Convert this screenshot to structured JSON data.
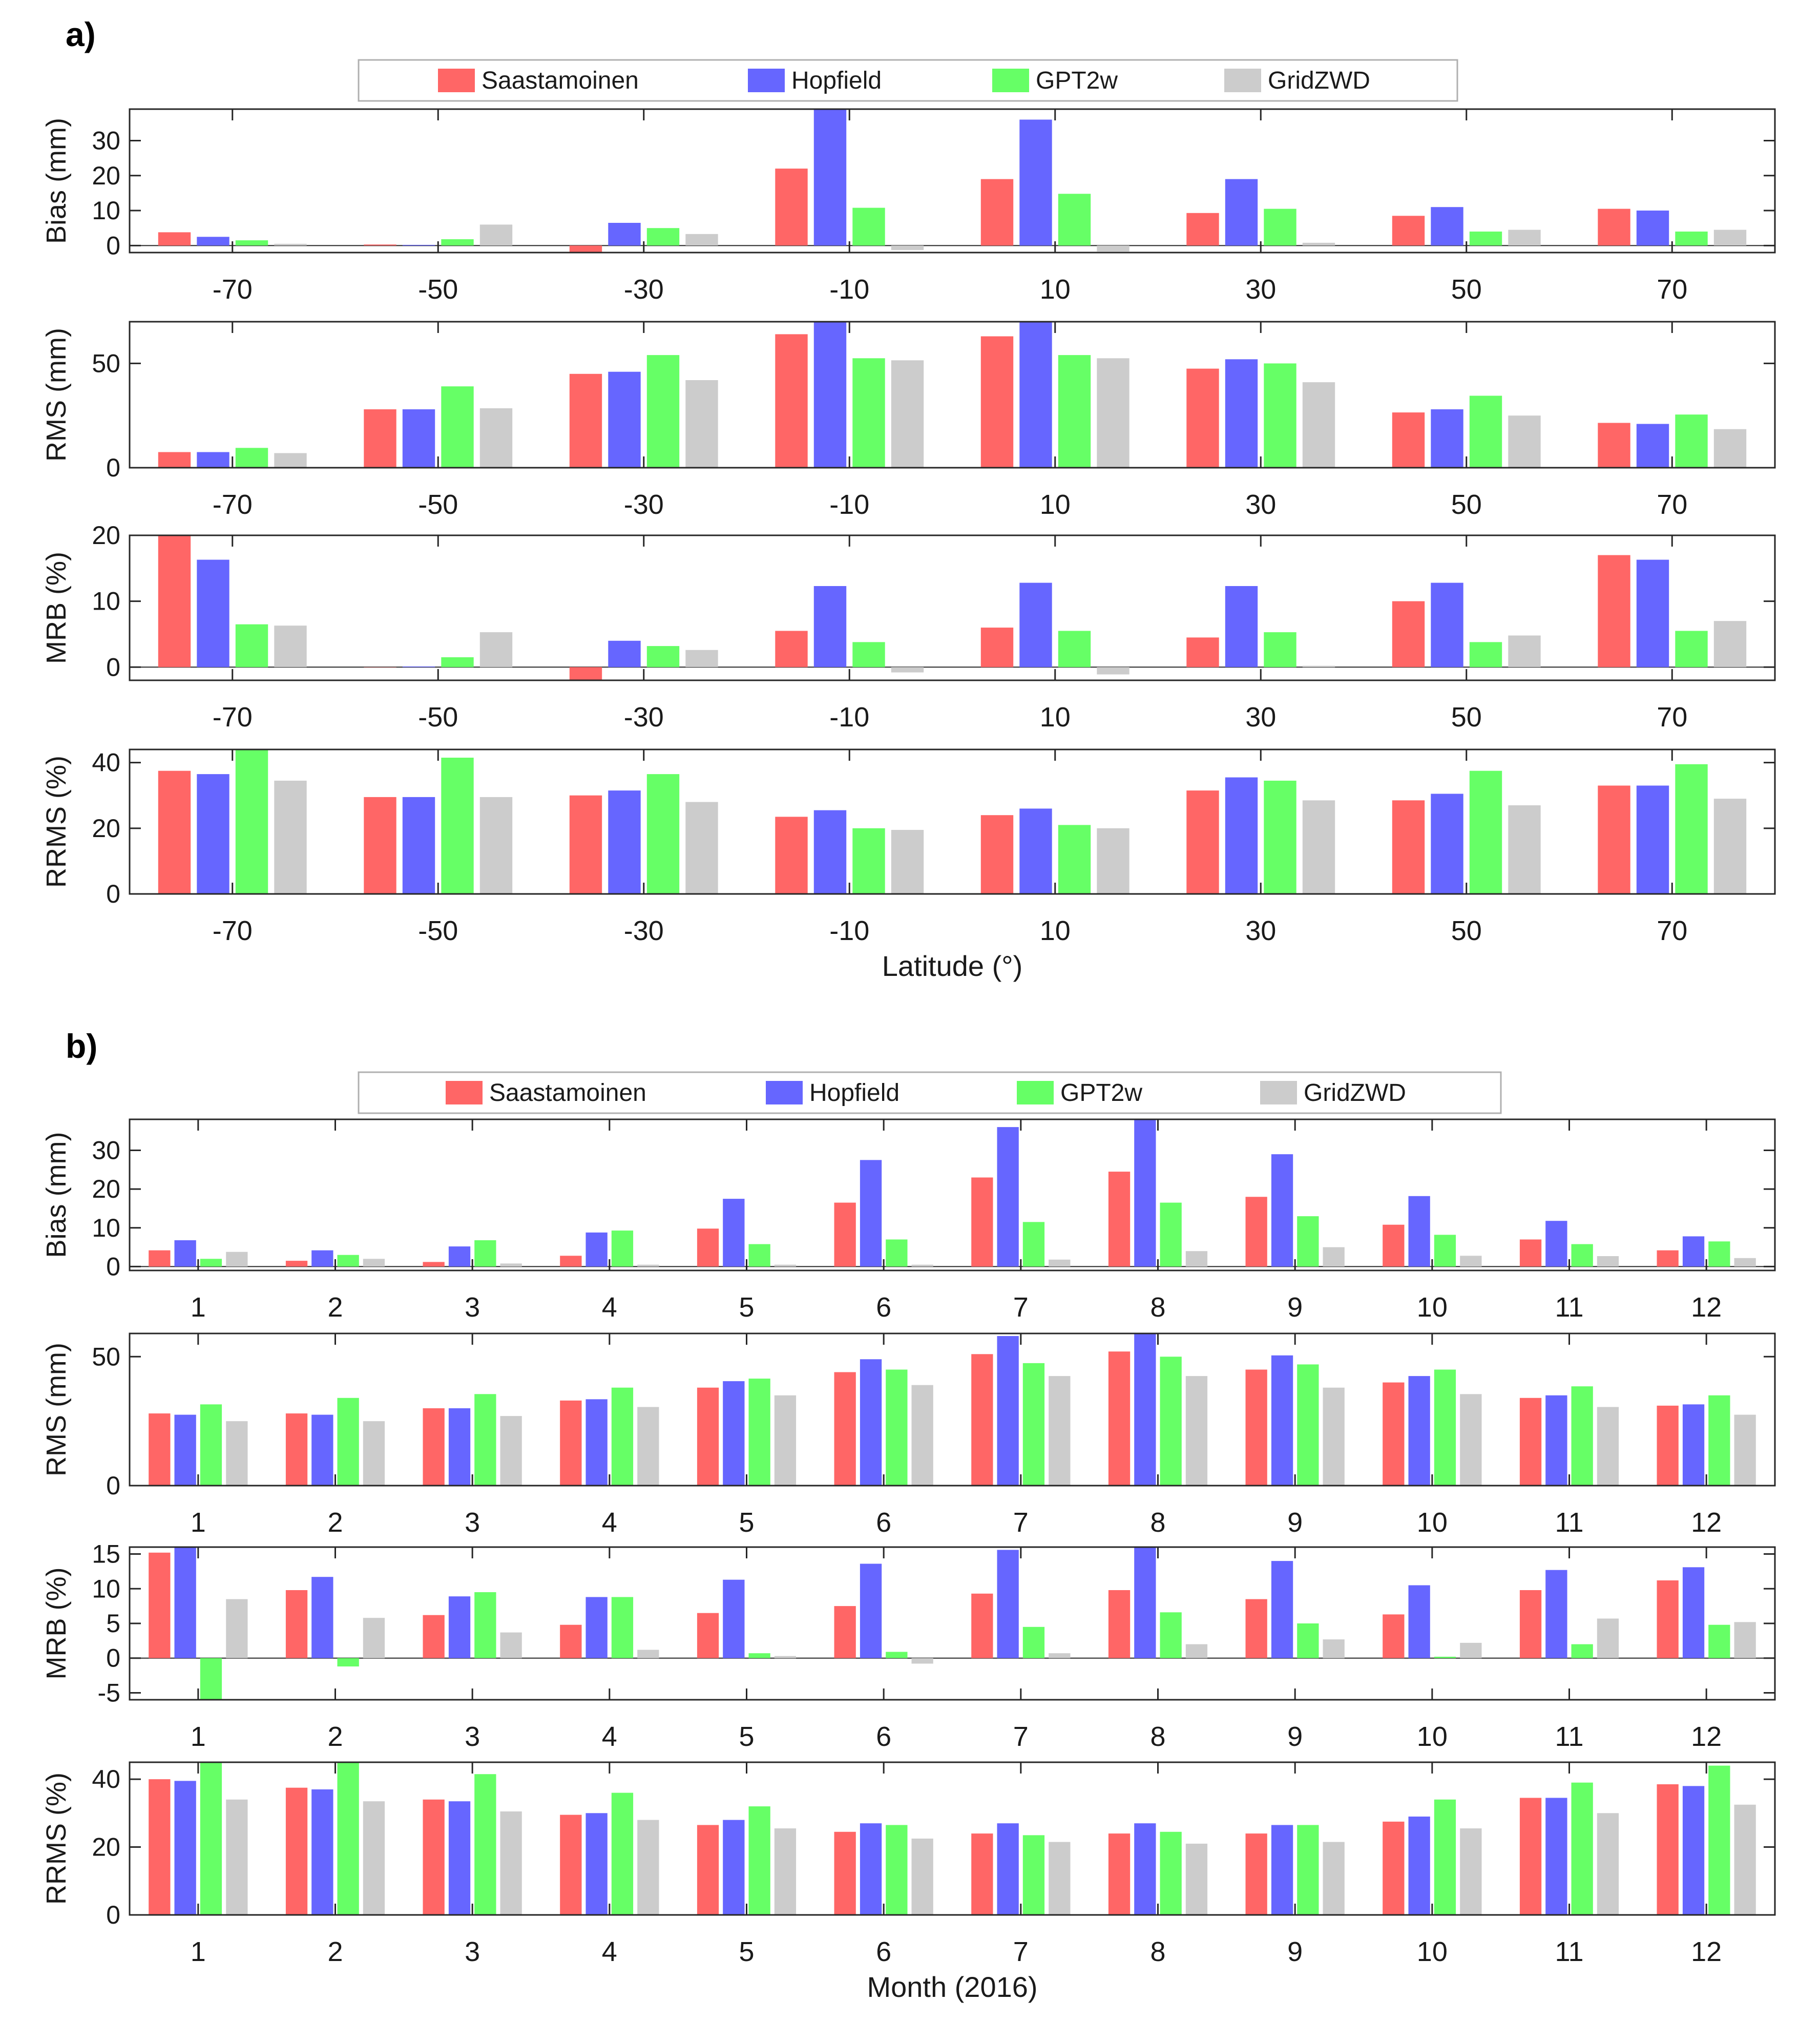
{
  "colors": {
    "Saastamoinen": "#ff6666",
    "Hopfield": "#6666ff",
    "GPT2w": "#66ff66",
    "GridZWD": "#cccccc"
  },
  "chart_data": [
    {
      "panel_label": "a)",
      "type": "bar",
      "legend": [
        "Saastamoinen",
        "Hopfield",
        "GPT2w",
        "GridZWD"
      ],
      "xlabel": "Latitude (°)",
      "categories": [
        "-70",
        "-50",
        "-30",
        "-10",
        "10",
        "30",
        "50",
        "70"
      ],
      "subplots": [
        {
          "ylabel": "Bias (mm)",
          "ylim": [
            -2,
            39
          ],
          "yticks": [
            0,
            10,
            20,
            30
          ],
          "series": [
            {
              "name": "Saastamoinen",
              "values": [
                3.8,
                0.3,
                -2,
                22,
                19,
                9.3,
                8.5,
                10.5
              ]
            },
            {
              "name": "Hopfield",
              "values": [
                2.5,
                0.2,
                6.5,
                39,
                36,
                19,
                11,
                10
              ]
            },
            {
              "name": "GPT2w",
              "values": [
                1.5,
                1.8,
                5,
                10.8,
                14.8,
                10.5,
                4,
                4
              ]
            },
            {
              "name": "GridZWD",
              "values": [
                0.5,
                6,
                3.3,
                -1.3,
                -1.7,
                0.8,
                4.5,
                4.5
              ]
            }
          ]
        },
        {
          "ylabel": "RMS (mm)",
          "ylim": [
            0,
            70
          ],
          "yticks": [
            0,
            50
          ],
          "series": [
            {
              "name": "Saastamoinen",
              "values": [
                7.5,
                28,
                45,
                64,
                63,
                47.5,
                26.5,
                21.5
              ]
            },
            {
              "name": "Hopfield",
              "values": [
                7.5,
                28,
                46,
                70,
                70,
                52,
                28,
                21
              ]
            },
            {
              "name": "GPT2w",
              "values": [
                9.5,
                39,
                54,
                52.5,
                54,
                50,
                34.5,
                25.5
              ]
            },
            {
              "name": "GridZWD",
              "values": [
                7,
                28.5,
                42,
                51.5,
                52.5,
                41,
                25,
                18.5
              ]
            }
          ]
        },
        {
          "ylabel": "MRB (%)",
          "ylim": [
            -2,
            20
          ],
          "yticks": [
            0,
            10,
            20
          ],
          "series": [
            {
              "name": "Saastamoinen",
              "values": [
                20,
                0,
                -2,
                5.5,
                6,
                4.5,
                10,
                17
              ]
            },
            {
              "name": "Hopfield",
              "values": [
                16.3,
                0.1,
                4,
                12.3,
                12.8,
                12.3,
                12.8,
                16.3
              ]
            },
            {
              "name": "GPT2w",
              "values": [
                6.5,
                1.5,
                3.2,
                3.8,
                5.5,
                5.3,
                3.8,
                5.5
              ]
            },
            {
              "name": "GridZWD",
              "values": [
                6.3,
                5.3,
                2.6,
                -0.8,
                -1.1,
                0.2,
                4.8,
                7
              ]
            }
          ]
        },
        {
          "ylabel": "RRMS (%)",
          "ylim": [
            0,
            44
          ],
          "yticks": [
            0,
            20,
            40
          ],
          "series": [
            {
              "name": "Saastamoinen",
              "values": [
                37.5,
                29.5,
                30,
                23.5,
                24,
                31.5,
                28.5,
                33
              ]
            },
            {
              "name": "Hopfield",
              "values": [
                36.5,
                29.5,
                31.5,
                25.5,
                26,
                35.5,
                30.5,
                33
              ]
            },
            {
              "name": "GPT2w",
              "values": [
                44,
                41.5,
                36.5,
                20,
                21,
                34.5,
                37.5,
                39.5
              ]
            },
            {
              "name": "GridZWD",
              "values": [
                34.5,
                29.5,
                28,
                19.5,
                20,
                28.5,
                27,
                29
              ]
            }
          ]
        }
      ]
    },
    {
      "panel_label": "b)",
      "type": "bar",
      "legend": [
        "Saastamoinen",
        "Hopfield",
        "GPT2w",
        "GridZWD"
      ],
      "xlabel": "Month (2016)",
      "categories": [
        "1",
        "2",
        "3",
        "4",
        "5",
        "6",
        "7",
        "8",
        "9",
        "10",
        "11",
        "12"
      ],
      "subplots": [
        {
          "ylabel": "Bias (mm)",
          "ylim": [
            -1,
            38
          ],
          "yticks": [
            0,
            10,
            20,
            30
          ],
          "series": [
            {
              "name": "Saastamoinen",
              "values": [
                4.2,
                1.5,
                1.2,
                2.8,
                9.8,
                16.5,
                23,
                24.5,
                18,
                10.8,
                7,
                4.2
              ]
            },
            {
              "name": "Hopfield",
              "values": [
                6.8,
                4.2,
                5.2,
                8.8,
                17.5,
                27.5,
                36,
                38,
                29,
                18.2,
                11.8,
                7.8
              ]
            },
            {
              "name": "GPT2w",
              "values": [
                2,
                3,
                6.8,
                9.3,
                5.8,
                7,
                11.5,
                16.5,
                13,
                8.2,
                5.8,
                6.5
              ]
            },
            {
              "name": "GridZWD",
              "values": [
                3.8,
                2,
                0.8,
                0.5,
                0.5,
                0.5,
                1.8,
                4,
                5,
                2.8,
                2.7,
                2.2
              ]
            }
          ]
        },
        {
          "ylabel": "RMS (mm)",
          "ylim": [
            0,
            59
          ],
          "yticks": [
            0,
            50
          ],
          "series": [
            {
              "name": "Saastamoinen",
              "values": [
                28,
                28,
                30,
                33,
                38,
                44,
                51,
                52,
                45,
                40,
                34,
                31
              ]
            },
            {
              "name": "Hopfield",
              "values": [
                27.5,
                27.5,
                30,
                33.5,
                40.5,
                49,
                58,
                59,
                50.5,
                42.5,
                35,
                31.5
              ]
            },
            {
              "name": "GPT2w",
              "values": [
                31.5,
                34,
                35.5,
                38,
                41.5,
                45,
                47.5,
                50,
                47,
                45,
                38.5,
                35
              ]
            },
            {
              "name": "GridZWD",
              "values": [
                25,
                25,
                27,
                30.5,
                35,
                39,
                42.5,
                42.5,
                38,
                35.5,
                30.5,
                27.5
              ]
            }
          ]
        },
        {
          "ylabel": "MRB (%)",
          "ylim": [
            -6,
            16
          ],
          "yticks": [
            -5,
            0,
            5,
            10,
            15
          ],
          "series": [
            {
              "name": "Saastamoinen",
              "values": [
                15.2,
                9.8,
                6.2,
                4.8,
                6.5,
                7.5,
                9.3,
                9.8,
                8.5,
                6.3,
                9.8,
                11.2
              ]
            },
            {
              "name": "Hopfield",
              "values": [
                16,
                11.7,
                8.9,
                8.8,
                11.3,
                13.6,
                15.6,
                15.9,
                14,
                10.5,
                12.7,
                13.1
              ]
            },
            {
              "name": "GPT2w",
              "values": [
                -6,
                -1.2,
                9.5,
                8.8,
                0.7,
                0.9,
                4.5,
                6.6,
                5,
                0.2,
                2,
                4.8
              ]
            },
            {
              "name": "GridZWD",
              "values": [
                8.5,
                5.8,
                3.7,
                1.2,
                0.3,
                -0.8,
                0.7,
                2,
                2.7,
                2.2,
                5.7,
                5.2
              ]
            }
          ]
        },
        {
          "ylabel": "RRMS (%)",
          "ylim": [
            0,
            45
          ],
          "yticks": [
            0,
            20,
            40
          ],
          "series": [
            {
              "name": "Saastamoinen",
              "values": [
                40,
                37.5,
                34,
                29.5,
                26.5,
                24.5,
                24,
                24,
                24,
                27.5,
                34.5,
                38.5
              ]
            },
            {
              "name": "Hopfield",
              "values": [
                39.5,
                37,
                33.5,
                30,
                28,
                27,
                27,
                27,
                26.5,
                29,
                34.5,
                38
              ]
            },
            {
              "name": "GPT2w",
              "values": [
                45,
                45,
                41.5,
                36,
                32,
                26.5,
                23.5,
                24.5,
                26.5,
                34,
                39,
                44
              ]
            },
            {
              "name": "GridZWD",
              "values": [
                34,
                33.5,
                30.5,
                28,
                25.5,
                22.5,
                21.5,
                21,
                21.5,
                25.5,
                30,
                32.5
              ]
            }
          ]
        }
      ]
    }
  ]
}
